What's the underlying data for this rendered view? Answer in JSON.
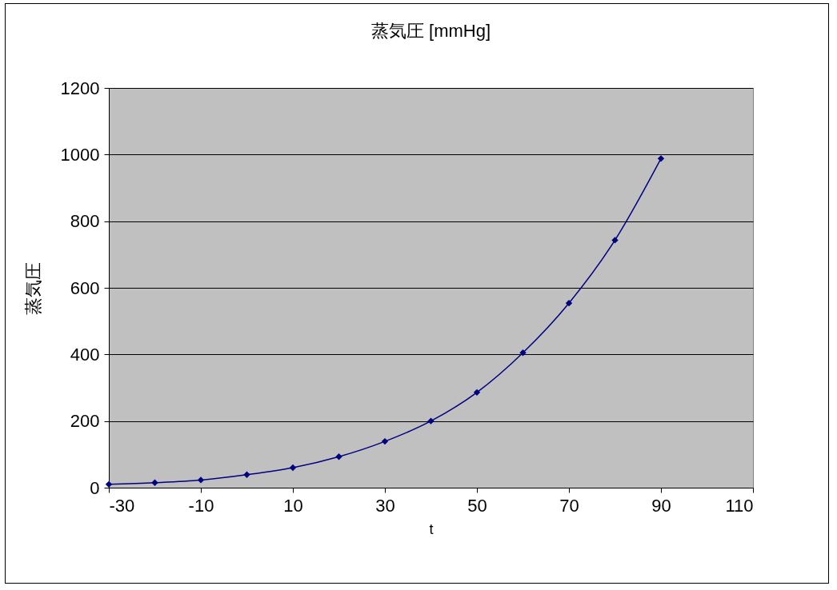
{
  "chart_data": {
    "type": "line",
    "title": "蒸気圧 [mmHg]",
    "xlabel": "t",
    "ylabel": "蒸気圧",
    "x": [
      -30,
      -20,
      -10,
      0,
      10,
      20,
      30,
      40,
      50,
      60,
      70,
      80,
      90
    ],
    "series": [
      {
        "color": "#000080",
        "values": [
          10,
          15,
          23,
          39,
          60,
          93,
          139,
          200,
          286,
          405,
          554,
          743,
          988
        ]
      }
    ],
    "xlim": [
      -30,
      110
    ],
    "xticks": [
      -30,
      -10,
      10,
      30,
      50,
      70,
      90,
      110
    ],
    "ylim": [
      0,
      1200
    ],
    "yticks": [
      0,
      200,
      400,
      600,
      800,
      1000,
      1200
    ],
    "grid": "y",
    "marker": "diamond",
    "line_style": "solid"
  }
}
